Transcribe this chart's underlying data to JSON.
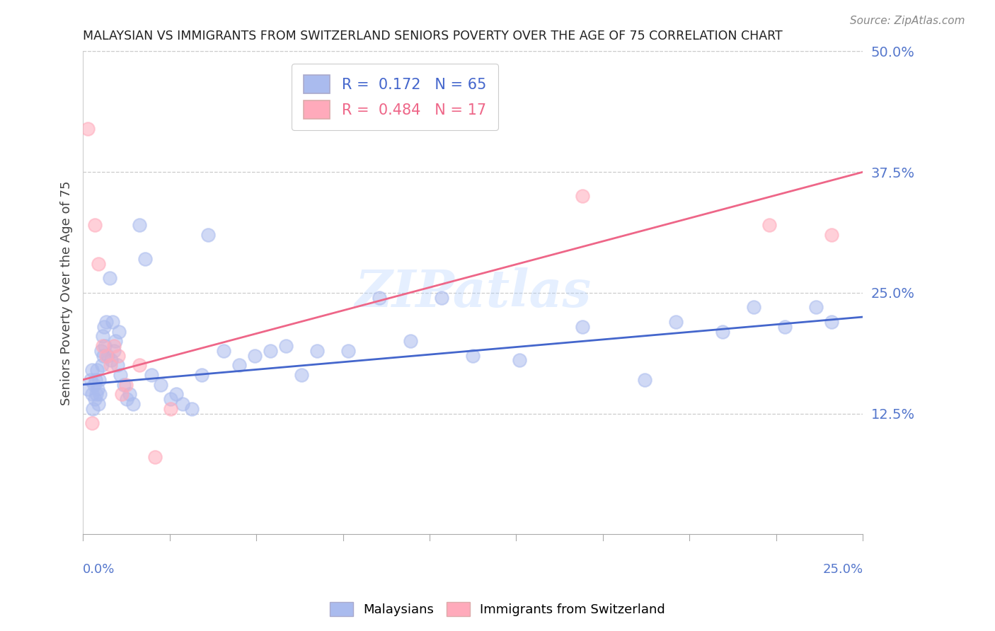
{
  "title": "MALAYSIAN VS IMMIGRANTS FROM SWITZERLAND SENIORS POVERTY OVER THE AGE OF 75 CORRELATION CHART",
  "source": "Source: ZipAtlas.com",
  "ylabel": "Seniors Poverty Over the Age of 75",
  "ytick_labels": [
    "12.5%",
    "25.0%",
    "37.5%",
    "50.0%"
  ],
  "ytick_values": [
    12.5,
    25.0,
    37.5,
    50.0
  ],
  "xtick_labels": [
    "0.0%",
    "25.0%"
  ],
  "xlim": [
    0.0,
    25.0
  ],
  "ylim": [
    0.0,
    50.0
  ],
  "blue_color": "#aabbee",
  "pink_color": "#ffaabb",
  "blue_line_color": "#4466cc",
  "pink_line_color": "#ee6688",
  "axis_label_color": "#5577cc",
  "watermark": "ZIPatlas",
  "blue_scatter_x": [
    0.15,
    0.25,
    0.28,
    0.3,
    0.32,
    0.35,
    0.38,
    0.4,
    0.42,
    0.45,
    0.48,
    0.5,
    0.52,
    0.55,
    0.58,
    0.6,
    0.62,
    0.65,
    0.68,
    0.7,
    0.75,
    0.8,
    0.85,
    0.9,
    0.95,
    1.0,
    1.05,
    1.1,
    1.15,
    1.2,
    1.3,
    1.4,
    1.5,
    1.6,
    1.8,
    2.0,
    2.2,
    2.5,
    2.8,
    3.0,
    3.2,
    3.5,
    3.8,
    4.0,
    4.5,
    5.0,
    5.5,
    6.0,
    6.5,
    7.0,
    7.5,
    8.5,
    9.5,
    10.5,
    11.5,
    12.5,
    14.0,
    16.0,
    18.0,
    19.0,
    20.5,
    21.5,
    22.5,
    23.5,
    24.0
  ],
  "blue_scatter_y": [
    15.0,
    16.0,
    14.5,
    17.0,
    13.0,
    15.5,
    14.0,
    16.0,
    14.5,
    17.0,
    15.0,
    13.5,
    16.0,
    14.5,
    19.0,
    17.5,
    20.5,
    18.5,
    21.5,
    19.5,
    22.0,
    18.5,
    26.5,
    18.0,
    22.0,
    19.0,
    20.0,
    17.5,
    21.0,
    16.5,
    15.5,
    14.0,
    14.5,
    13.5,
    32.0,
    28.5,
    16.5,
    15.5,
    14.0,
    14.5,
    13.5,
    13.0,
    16.5,
    31.0,
    19.0,
    17.5,
    18.5,
    19.0,
    19.5,
    16.5,
    19.0,
    19.0,
    24.5,
    20.0,
    24.5,
    18.5,
    18.0,
    21.5,
    16.0,
    22.0,
    21.0,
    23.5,
    21.5,
    23.5,
    22.0
  ],
  "pink_scatter_x": [
    0.15,
    0.28,
    0.38,
    0.5,
    0.62,
    0.75,
    0.88,
    1.0,
    1.12,
    1.25,
    1.38,
    1.8,
    2.3,
    2.8,
    16.0,
    22.0,
    24.0
  ],
  "pink_scatter_y": [
    42.0,
    11.5,
    32.0,
    28.0,
    19.5,
    18.5,
    17.5,
    19.5,
    18.5,
    14.5,
    15.5,
    17.5,
    8.0,
    13.0,
    35.0,
    32.0,
    31.0
  ],
  "blue_trendline_x": [
    0.0,
    25.0
  ],
  "blue_trendline_y": [
    15.5,
    22.5
  ],
  "pink_trendline_x": [
    0.0,
    25.0
  ],
  "pink_trendline_y": [
    16.0,
    37.5
  ]
}
